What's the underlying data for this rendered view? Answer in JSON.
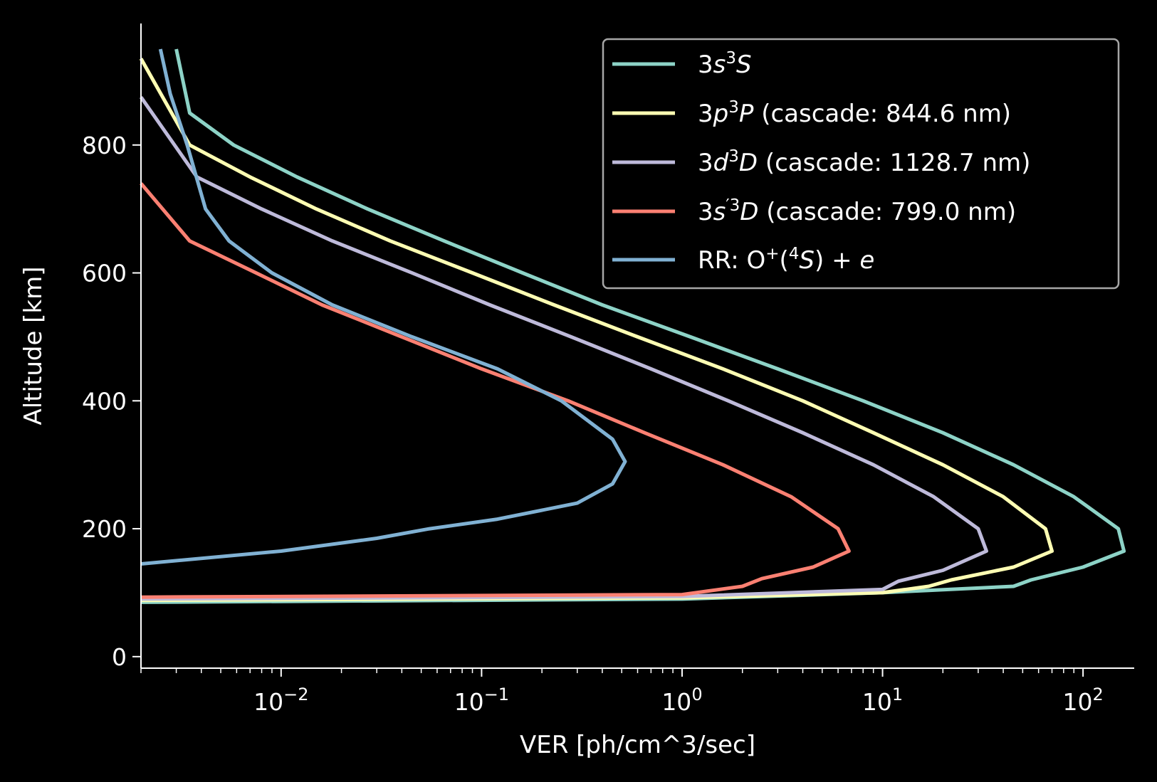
{
  "chart_data": {
    "type": "line",
    "xlabel": "VER [ph/cm^3/sec]",
    "ylabel": "Altitude [km]",
    "x_scale": "log",
    "xlim": [
      0.002,
      180
    ],
    "ylim": [
      -18,
      990
    ],
    "y_ticks": [
      0,
      200,
      400,
      600,
      800
    ],
    "x_ticks": [
      0.01,
      0.1,
      1,
      10,
      100
    ],
    "x_tick_labels": [
      {
        "base": "10",
        "exp": "−2"
      },
      {
        "base": "10",
        "exp": "−1"
      },
      {
        "base": "10",
        "exp": "0"
      },
      {
        "base": "10",
        "exp": "1"
      },
      {
        "base": "10",
        "exp": "2"
      }
    ],
    "grid": false,
    "legend_position": "top-right",
    "series": [
      {
        "name": "3s³S",
        "legend": [
          {
            "t": "3",
            "s": "n"
          },
          {
            "t": "s",
            "s": "i"
          },
          {
            "t": "3",
            "s": "sup"
          },
          {
            "t": "S",
            "s": "i"
          }
        ],
        "color": "#8dd3c7",
        "points": [
          [
            0.002,
            85
          ],
          [
            1,
            90
          ],
          [
            10,
            100
          ],
          [
            45,
            110
          ],
          [
            55,
            120
          ],
          [
            100,
            140
          ],
          [
            160,
            165
          ],
          [
            150,
            200
          ],
          [
            90,
            250
          ],
          [
            45,
            300
          ],
          [
            20,
            350
          ],
          [
            8,
            400
          ],
          [
            3,
            450
          ],
          [
            1.1,
            500
          ],
          [
            0.4,
            550
          ],
          [
            0.16,
            600
          ],
          [
            0.065,
            650
          ],
          [
            0.027,
            700
          ],
          [
            0.012,
            750
          ],
          [
            0.0058,
            800
          ],
          [
            0.0035,
            850
          ],
          [
            0.003,
            950
          ]
        ]
      },
      {
        "name": "3p³P (cascade: 844.6 nm)",
        "legend": [
          {
            "t": "3",
            "s": "n"
          },
          {
            "t": "p",
            "s": "i"
          },
          {
            "t": "3",
            "s": "sup"
          },
          {
            "t": "P",
            "s": "i"
          },
          {
            "t": " (cascade: 844.6 nm)",
            "s": "n"
          }
        ],
        "color": "#ffffb3",
        "points": [
          [
            0.002,
            88
          ],
          [
            1,
            92
          ],
          [
            10,
            100
          ],
          [
            17,
            110
          ],
          [
            22,
            120
          ],
          [
            45,
            140
          ],
          [
            70,
            165
          ],
          [
            65,
            200
          ],
          [
            40,
            250
          ],
          [
            20,
            300
          ],
          [
            9,
            350
          ],
          [
            4,
            400
          ],
          [
            1.6,
            450
          ],
          [
            0.6,
            500
          ],
          [
            0.23,
            550
          ],
          [
            0.09,
            600
          ],
          [
            0.035,
            650
          ],
          [
            0.015,
            700
          ],
          [
            0.007,
            750
          ],
          [
            0.0035,
            800
          ],
          [
            0.002,
            935
          ]
        ]
      },
      {
        "name": "3d³D (cascade: 1128.7 nm)",
        "legend": [
          {
            "t": "3",
            "s": "n"
          },
          {
            "t": "d",
            "s": "i"
          },
          {
            "t": "3",
            "s": "sup"
          },
          {
            "t": "D",
            "s": "i"
          },
          {
            "t": " (cascade: 1128.7 nm)",
            "s": "n"
          }
        ],
        "color": "#bebada",
        "points": [
          [
            0.002,
            90
          ],
          [
            1,
            94
          ],
          [
            10,
            105
          ],
          [
            12,
            118
          ],
          [
            20,
            135
          ],
          [
            33,
            165
          ],
          [
            30,
            200
          ],
          [
            18,
            250
          ],
          [
            9,
            300
          ],
          [
            4,
            350
          ],
          [
            1.7,
            400
          ],
          [
            0.7,
            450
          ],
          [
            0.28,
            500
          ],
          [
            0.11,
            550
          ],
          [
            0.045,
            600
          ],
          [
            0.018,
            650
          ],
          [
            0.008,
            700
          ],
          [
            0.0038,
            750
          ],
          [
            0.002,
            875
          ]
        ]
      },
      {
        "name": "3s′³D (cascade: 799.0 nm)",
        "legend": [
          {
            "t": "3",
            "s": "n"
          },
          {
            "t": "s",
            "s": "i"
          },
          {
            "t": "′3",
            "s": "sup"
          },
          {
            "t": "D",
            "s": "i"
          },
          {
            "t": " (cascade: 799.0 nm)",
            "s": "n"
          }
        ],
        "color": "#fb8072",
        "points": [
          [
            0.002,
            93
          ],
          [
            1,
            97
          ],
          [
            2,
            110
          ],
          [
            2.5,
            122
          ],
          [
            4.5,
            140
          ],
          [
            6.8,
            165
          ],
          [
            6,
            200
          ],
          [
            3.5,
            250
          ],
          [
            1.6,
            300
          ],
          [
            0.65,
            350
          ],
          [
            0.27,
            400
          ],
          [
            0.1,
            450
          ],
          [
            0.04,
            500
          ],
          [
            0.016,
            550
          ],
          [
            0.0075,
            600
          ],
          [
            0.0035,
            650
          ],
          [
            0.002,
            740
          ]
        ]
      },
      {
        "name": "RR: O⁺(⁴S) + e",
        "legend": [
          {
            "t": "RR: O",
            "s": "n"
          },
          {
            "t": "+",
            "s": "sup"
          },
          {
            "t": "(",
            "s": "n"
          },
          {
            "t": "4",
            "s": "sup"
          },
          {
            "t": "S",
            "s": "i"
          },
          {
            "t": ") + ",
            "s": "n"
          },
          {
            "t": "e",
            "s": "i"
          }
        ],
        "color": "#80b1d3",
        "points": [
          [
            0.002,
            145
          ],
          [
            0.01,
            165
          ],
          [
            0.03,
            185
          ],
          [
            0.055,
            200
          ],
          [
            0.12,
            215
          ],
          [
            0.3,
            240
          ],
          [
            0.45,
            270
          ],
          [
            0.52,
            305
          ],
          [
            0.45,
            340
          ],
          [
            0.25,
            400
          ],
          [
            0.12,
            450
          ],
          [
            0.045,
            500
          ],
          [
            0.018,
            550
          ],
          [
            0.009,
            600
          ],
          [
            0.0055,
            650
          ],
          [
            0.0042,
            700
          ],
          [
            0.0034,
            800
          ],
          [
            0.0028,
            880
          ],
          [
            0.0025,
            950
          ]
        ]
      }
    ]
  }
}
